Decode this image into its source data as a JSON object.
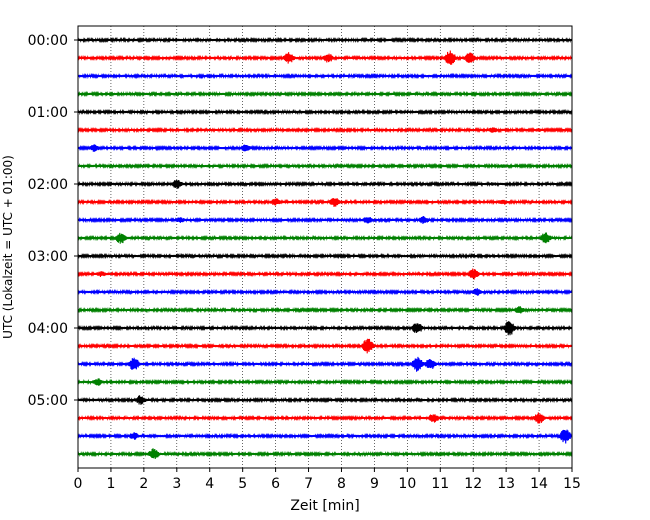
{
  "chart_data": {
    "type": "line",
    "title": "",
    "xlabel": "Zeit  [min]",
    "ylabel": "UTC (Lokalzeit = UTC + 01:00)",
    "xlim": [
      0,
      15
    ],
    "x_ticks": [
      "0",
      "1",
      "2",
      "3",
      "4",
      "5",
      "6",
      "7",
      "8",
      "9",
      "10",
      "11",
      "12",
      "13",
      "14",
      "15"
    ],
    "y_ticks": [
      "00:00",
      "01:00",
      "02:00",
      "03:00",
      "04:00",
      "05:00"
    ],
    "grid": "vertical dotted",
    "line_interval_minutes": 15,
    "trace_color_cycle": [
      "#000000",
      "#ff0000",
      "#0000ff",
      "#008000"
    ],
    "series": [
      {
        "start": "00:00",
        "bursts": [
          [
            12.0,
            1
          ]
        ]
      },
      {
        "start": "00:15",
        "bursts": [
          [
            6.4,
            6
          ],
          [
            7.6,
            5
          ],
          [
            11.3,
            8
          ],
          [
            11.9,
            6
          ]
        ]
      },
      {
        "start": "00:30",
        "bursts": [
          [
            1.9,
            1
          ]
        ]
      },
      {
        "start": "00:45",
        "bursts": []
      },
      {
        "start": "01:00",
        "bursts": []
      },
      {
        "start": "01:15",
        "bursts": [
          [
            12.6,
            3
          ],
          [
            14.0,
            2
          ]
        ]
      },
      {
        "start": "01:30",
        "bursts": [
          [
            0.5,
            4
          ],
          [
            5.1,
            4
          ]
        ]
      },
      {
        "start": "01:45",
        "bursts": [
          [
            12.9,
            2
          ]
        ]
      },
      {
        "start": "02:00",
        "bursts": [
          [
            3.0,
            5
          ],
          [
            12.6,
            2
          ]
        ]
      },
      {
        "start": "02:15",
        "bursts": [
          [
            6.0,
            4
          ],
          [
            7.8,
            5
          ],
          [
            12.9,
            3
          ]
        ]
      },
      {
        "start": "02:30",
        "bursts": [
          [
            3.1,
            3
          ],
          [
            8.8,
            4
          ],
          [
            10.5,
            4
          ]
        ]
      },
      {
        "start": "02:45",
        "bursts": [
          [
            1.3,
            6
          ],
          [
            14.2,
            6
          ]
        ]
      },
      {
        "start": "03:00",
        "bursts": []
      },
      {
        "start": "03:15",
        "bursts": [
          [
            0.7,
            3
          ],
          [
            12.0,
            6
          ]
        ]
      },
      {
        "start": "03:30",
        "bursts": [
          [
            12.1,
            4
          ]
        ]
      },
      {
        "start": "03:45",
        "bursts": [
          [
            13.4,
            4
          ]
        ]
      },
      {
        "start": "04:00",
        "bursts": [
          [
            10.3,
            6
          ],
          [
            13.1,
            8
          ]
        ]
      },
      {
        "start": "04:15",
        "bursts": [
          [
            8.8,
            8
          ]
        ]
      },
      {
        "start": "04:30",
        "bursts": [
          [
            1.7,
            7
          ],
          [
            10.3,
            8
          ],
          [
            10.7,
            6
          ]
        ]
      },
      {
        "start": "04:45",
        "bursts": [
          [
            0.6,
            4
          ]
        ]
      },
      {
        "start": "05:00",
        "bursts": [
          [
            1.9,
            5
          ]
        ]
      },
      {
        "start": "05:15",
        "bursts": [
          [
            10.8,
            5
          ],
          [
            14.0,
            6
          ]
        ]
      },
      {
        "start": "05:30",
        "bursts": [
          [
            1.7,
            4
          ],
          [
            14.8,
            8
          ]
        ]
      },
      {
        "start": "05:45",
        "bursts": [
          [
            2.3,
            6
          ]
        ]
      }
    ]
  }
}
